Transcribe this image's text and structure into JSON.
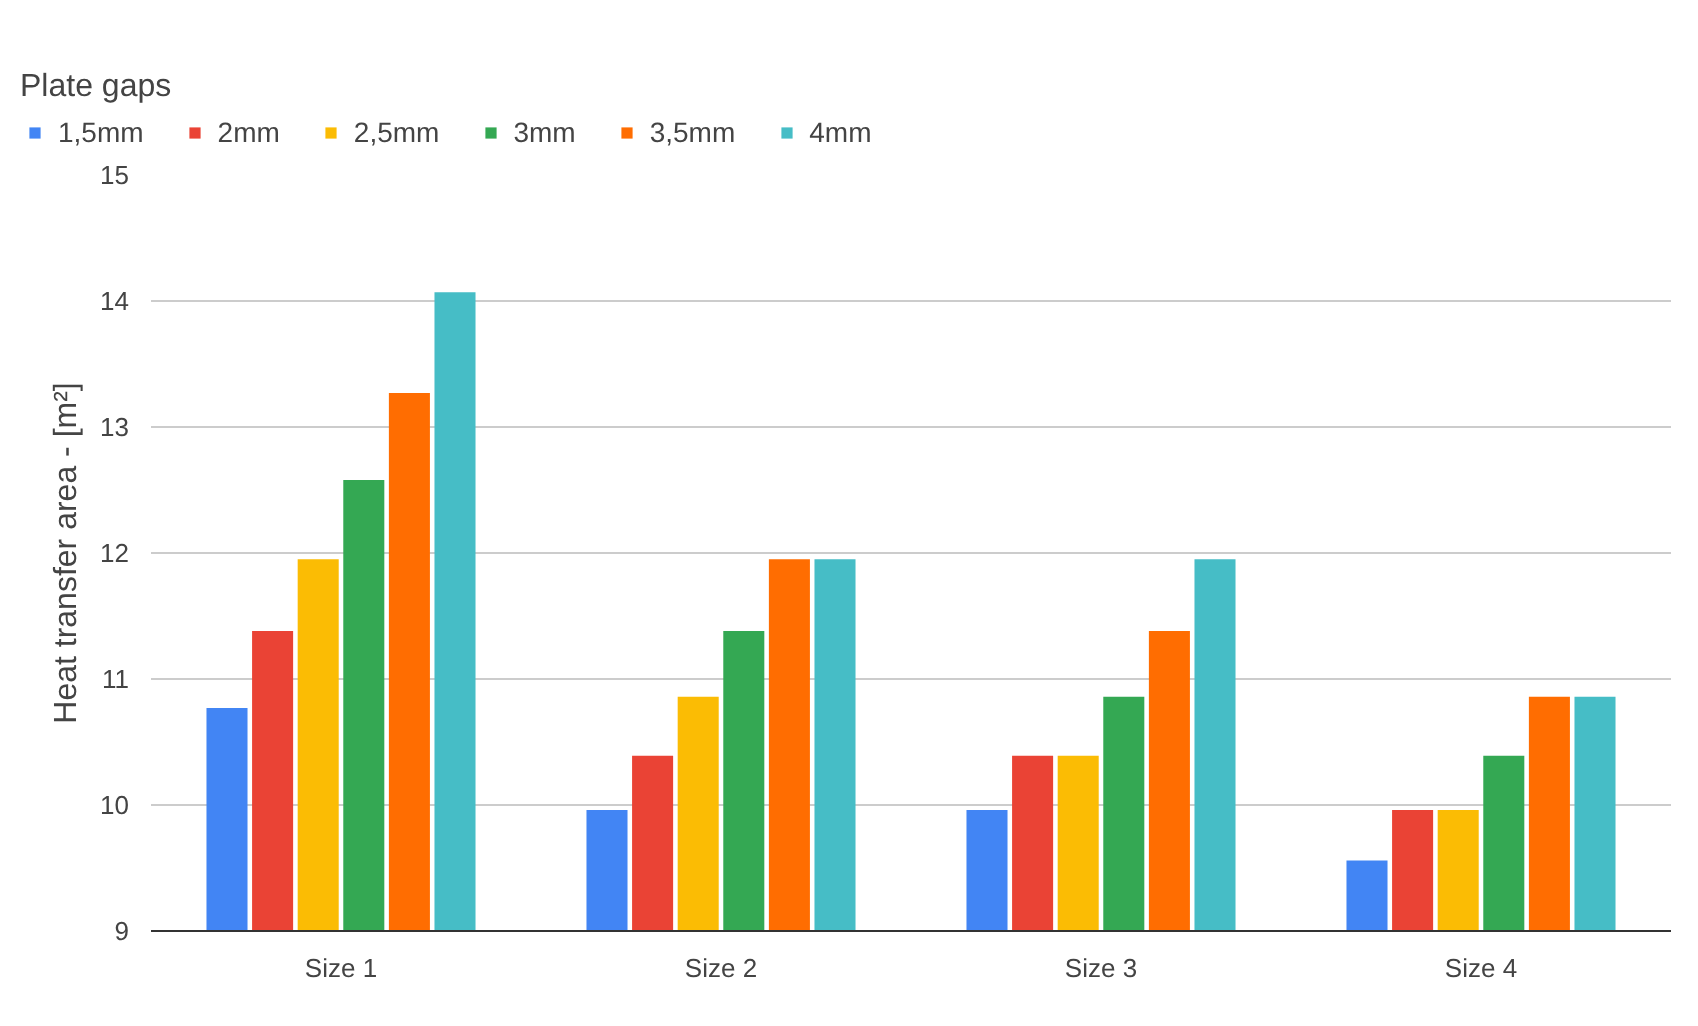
{
  "chart_data": {
    "type": "bar",
    "ylabel": "Heat transfer area - [m²]",
    "legend_title": "Plate gaps",
    "categories": [
      "Size 1",
      "Size 2",
      "Size 3",
      "Size 4"
    ],
    "series": [
      {
        "name": "1,5mm",
        "color": "#4285f4",
        "values": [
          10.77,
          9.96,
          9.96,
          9.56
        ]
      },
      {
        "name": "2mm",
        "color": "#ea4335",
        "values": [
          11.38,
          10.39,
          10.39,
          9.96
        ]
      },
      {
        "name": "2,5mm",
        "color": "#fbbc04",
        "values": [
          11.95,
          10.86,
          10.39,
          9.96
        ]
      },
      {
        "name": "3mm",
        "color": "#34a853",
        "values": [
          12.58,
          11.38,
          10.86,
          10.39
        ]
      },
      {
        "name": "3,5mm",
        "color": "#ff6d01",
        "values": [
          13.27,
          11.95,
          11.38,
          10.86
        ]
      },
      {
        "name": "4mm",
        "color": "#46bdc6",
        "values": [
          14.07,
          11.95,
          11.95,
          10.86
        ]
      }
    ],
    "ylim": [
      9,
      15
    ],
    "yticks": [
      9,
      10,
      11,
      12,
      13,
      14,
      15
    ],
    "grid": "y",
    "legend": "top"
  }
}
